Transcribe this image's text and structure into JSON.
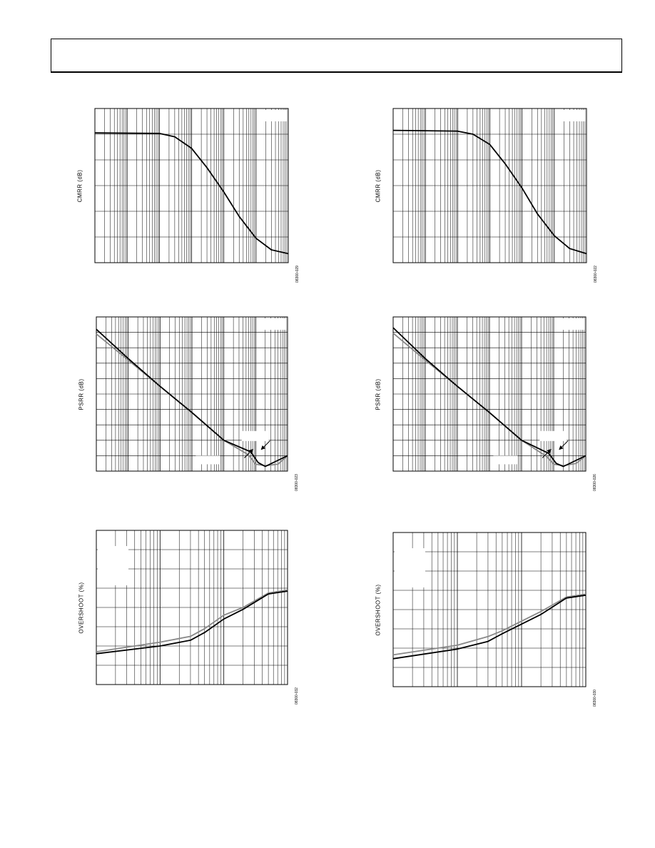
{
  "page": {
    "header_title": ""
  },
  "panels": [
    {
      "ylabel": "CMRR (dB)",
      "figure_id": "08300-029",
      "kind": "cmrr",
      "chart_data": {
        "type": "line",
        "xscale": "log",
        "xlim": [
          1,
          1000000
        ],
        "ylim": [
          0,
          6
        ],
        "grid": true,
        "series": [
          {
            "color": "#000000",
            "x": [
              1,
              100,
              300,
              1000,
              3000,
              10000,
              30000,
              100000,
              300000,
              1000000
            ],
            "y": [
              5.05,
              5.03,
              4.9,
              4.45,
              3.7,
              2.75,
              1.8,
              0.95,
              0.5,
              0.35
            ]
          }
        ]
      }
    },
    {
      "ylabel": "CMRR (dB)",
      "figure_id": "08300-022",
      "kind": "cmrr",
      "chart_data": {
        "type": "line",
        "xscale": "log",
        "xlim": [
          1,
          1000000
        ],
        "ylim": [
          0,
          6
        ],
        "grid": true,
        "series": [
          {
            "color": "#000000",
            "x": [
              1,
              100,
              300,
              1000,
              3000,
              10000,
              30000,
              100000,
              300000,
              1000000
            ],
            "y": [
              5.15,
              5.12,
              5.0,
              4.6,
              3.85,
              2.9,
              1.9,
              1.05,
              0.55,
              0.35
            ]
          }
        ]
      }
    },
    {
      "ylabel": "PSRR (dB)",
      "figure_id": "08300-023",
      "kind": "psrr",
      "chart_data": {
        "type": "line",
        "xscale": "log",
        "xlim": [
          1,
          1000000
        ],
        "ylim": [
          0,
          10
        ],
        "grid": true,
        "series": [
          {
            "color": "#000000",
            "x": [
              1,
              10,
              100,
              1000,
              10000,
              70000,
              120000,
              200000,
              400000,
              1000000
            ],
            "y": [
              9.2,
              7.3,
              5.5,
              3.8,
              2.0,
              1.25,
              0.55,
              0.3,
              0.6,
              1.0
            ]
          },
          {
            "color": "#888888",
            "x": [
              1,
              10,
              100,
              1000,
              10000,
              60000,
              100000,
              200000,
              500000,
              1000000
            ],
            "y": [
              8.9,
              7.2,
              5.5,
              3.8,
              2.0,
              1.05,
              0.45,
              0.35,
              0.45,
              1.0
            ]
          }
        ]
      }
    },
    {
      "ylabel": "PSRR (dB)",
      "figure_id": "08300-026",
      "kind": "psrr",
      "chart_data": {
        "type": "line",
        "xscale": "log",
        "xlim": [
          1,
          1000000
        ],
        "ylim": [
          0,
          10
        ],
        "grid": true,
        "series": [
          {
            "color": "#000000",
            "x": [
              1,
              10,
              100,
              1000,
              10000,
              70000,
              120000,
              200000,
              400000,
              1000000
            ],
            "y": [
              9.3,
              7.3,
              5.5,
              3.8,
              2.0,
              1.15,
              0.5,
              0.3,
              0.6,
              1.0
            ]
          },
          {
            "color": "#888888",
            "x": [
              1,
              10,
              100,
              1000,
              10000,
              60000,
              100000,
              200000,
              500000,
              1000000
            ],
            "y": [
              8.95,
              7.2,
              5.5,
              3.8,
              2.0,
              0.95,
              0.45,
              0.35,
              0.5,
              1.0
            ]
          }
        ]
      }
    },
    {
      "ylabel": "OVERSHOOT (%)",
      "figure_id": "08300-032",
      "kind": "overshoot",
      "chart_data": {
        "type": "line",
        "xscale": "log",
        "xlim": [
          1,
          1000
        ],
        "ylim": [
          0,
          8
        ],
        "grid": true,
        "series": [
          {
            "color": "#000000",
            "x": [
              1,
              10,
              30,
              50,
              100,
              200,
              500,
              1000
            ],
            "y": [
              1.6,
              2.0,
              2.3,
              2.7,
              3.4,
              3.9,
              4.7,
              4.85
            ]
          },
          {
            "color": "#888888",
            "x": [
              1,
              10,
              30,
              50,
              100,
              200,
              500,
              1000
            ],
            "y": [
              1.7,
              2.2,
              2.5,
              2.9,
              3.6,
              4.0,
              4.75,
              4.9
            ]
          }
        ]
      }
    },
    {
      "ylabel": "OVERSHOOT (%)",
      "figure_id": "08300-030",
      "kind": "overshoot",
      "chart_data": {
        "type": "line",
        "xscale": "log",
        "xlim": [
          1,
          1000
        ],
        "ylim": [
          0,
          8
        ],
        "grid": true,
        "series": [
          {
            "color": "#000000",
            "x": [
              1,
              10,
              30,
              50,
              100,
              200,
              500,
              1000
            ],
            "y": [
              1.45,
              1.95,
              2.35,
              2.75,
              3.25,
              3.75,
              4.6,
              4.75
            ]
          },
          {
            "color": "#888888",
            "x": [
              1,
              10,
              30,
              50,
              100,
              200,
              500,
              1000
            ],
            "y": [
              1.65,
              2.15,
              2.6,
              2.9,
              3.4,
              3.9,
              4.65,
              4.8
            ]
          }
        ]
      }
    }
  ]
}
